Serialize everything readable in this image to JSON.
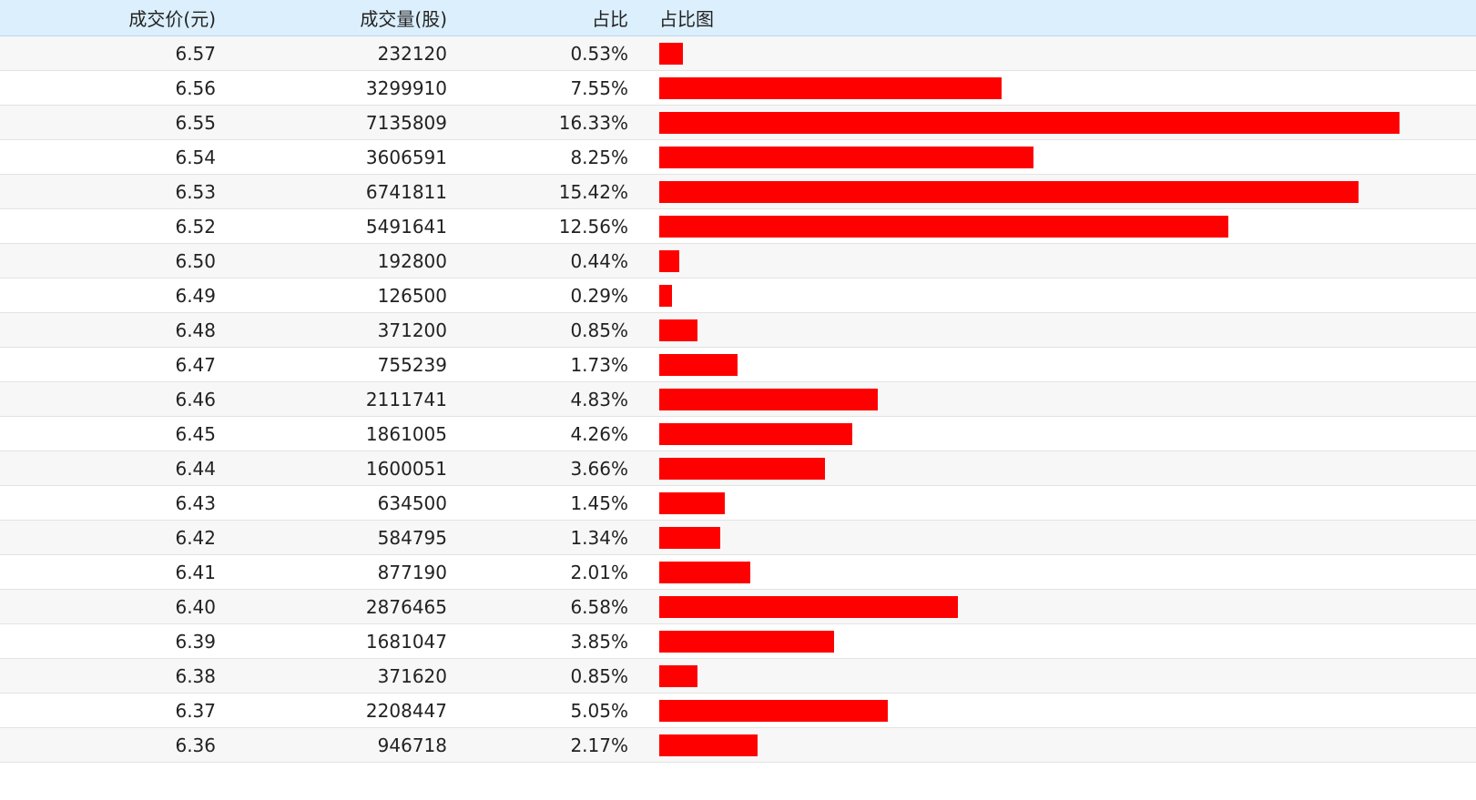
{
  "header": {
    "price_label": "成交价(元)",
    "volume_label": "成交量(股)",
    "ratio_label": "占比",
    "chart_label": "占比图"
  },
  "colors": {
    "bar": "#ff0000",
    "header_bg": "#dceffc",
    "row_alt_bg": "#f7f7f7"
  },
  "rows": [
    {
      "price": "6.57",
      "volume": "232120",
      "ratio": "0.53%",
      "ratio_value": 0.53
    },
    {
      "price": "6.56",
      "volume": "3299910",
      "ratio": "7.55%",
      "ratio_value": 7.55
    },
    {
      "price": "6.55",
      "volume": "7135809",
      "ratio": "16.33%",
      "ratio_value": 16.33
    },
    {
      "price": "6.54",
      "volume": "3606591",
      "ratio": "8.25%",
      "ratio_value": 8.25
    },
    {
      "price": "6.53",
      "volume": "6741811",
      "ratio": "15.42%",
      "ratio_value": 15.42
    },
    {
      "price": "6.52",
      "volume": "5491641",
      "ratio": "12.56%",
      "ratio_value": 12.56
    },
    {
      "price": "6.50",
      "volume": "192800",
      "ratio": "0.44%",
      "ratio_value": 0.44
    },
    {
      "price": "6.49",
      "volume": "126500",
      "ratio": "0.29%",
      "ratio_value": 0.29
    },
    {
      "price": "6.48",
      "volume": "371200",
      "ratio": "0.85%",
      "ratio_value": 0.85
    },
    {
      "price": "6.47",
      "volume": "755239",
      "ratio": "1.73%",
      "ratio_value": 1.73
    },
    {
      "price": "6.46",
      "volume": "2111741",
      "ratio": "4.83%",
      "ratio_value": 4.83
    },
    {
      "price": "6.45",
      "volume": "1861005",
      "ratio": "4.26%",
      "ratio_value": 4.26
    },
    {
      "price": "6.44",
      "volume": "1600051",
      "ratio": "3.66%",
      "ratio_value": 3.66
    },
    {
      "price": "6.43",
      "volume": "634500",
      "ratio": "1.45%",
      "ratio_value": 1.45
    },
    {
      "price": "6.42",
      "volume": "584795",
      "ratio": "1.34%",
      "ratio_value": 1.34
    },
    {
      "price": "6.41",
      "volume": "877190",
      "ratio": "2.01%",
      "ratio_value": 2.01
    },
    {
      "price": "6.40",
      "volume": "2876465",
      "ratio": "6.58%",
      "ratio_value": 6.58
    },
    {
      "price": "6.39",
      "volume": "1681047",
      "ratio": "3.85%",
      "ratio_value": 3.85
    },
    {
      "price": "6.38",
      "volume": "371620",
      "ratio": "0.85%",
      "ratio_value": 0.85
    },
    {
      "price": "6.37",
      "volume": "2208447",
      "ratio": "5.05%",
      "ratio_value": 5.05
    },
    {
      "price": "6.36",
      "volume": "946718",
      "ratio": "2.17%",
      "ratio_value": 2.17
    }
  ]
}
